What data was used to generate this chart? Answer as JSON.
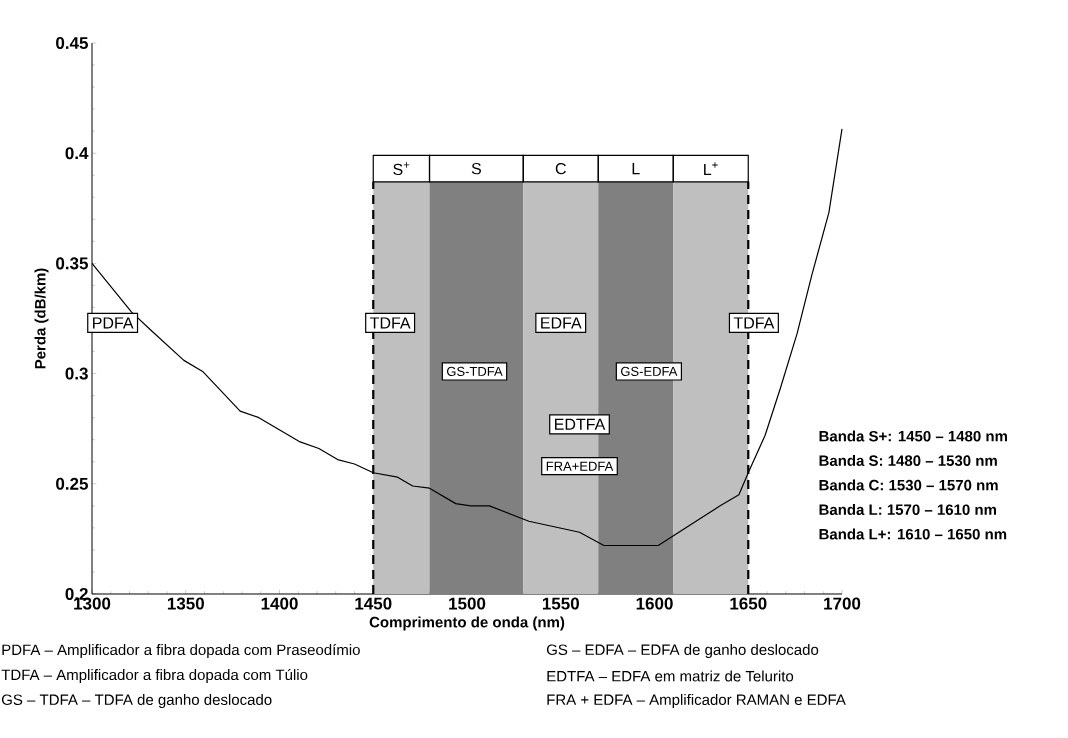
{
  "chart_data": {
    "type": "line",
    "xlabel": "Comprimento de onda (nm)",
    "ylabel": "Perda (dB/km)",
    "color": "#000000",
    "marker": "none",
    "line_style": "solid",
    "x": [
      1300,
      1321,
      1331,
      1349,
      1359,
      1379,
      1389,
      1411,
      1421,
      1431,
      1440,
      1450,
      1463,
      1471,
      1480,
      1494,
      1502,
      1512,
      1533,
      1560,
      1573,
      1581,
      1602,
      1613,
      1624,
      1635,
      1645,
      1650,
      1659,
      1667,
      1676,
      1684,
      1693,
      1700
    ],
    "values": [
      0.35,
      0.328,
      0.32,
      0.306,
      0.301,
      0.283,
      0.28,
      0.269,
      0.266,
      0.261,
      0.259,
      0.255,
      0.253,
      0.249,
      0.248,
      0.241,
      0.24,
      0.24,
      0.233,
      0.228,
      0.222,
      0.222,
      0.222,
      0.228,
      0.234,
      0.24,
      0.245,
      0.255,
      0.272,
      0.293,
      0.318,
      0.345,
      0.373,
      0.411
    ],
    "xlim": [
      1300,
      1700
    ],
    "ylim": [
      0.2,
      0.45
    ],
    "xticks": [
      1300,
      1350,
      1400,
      1450,
      1500,
      1550,
      1600,
      1650,
      1700
    ],
    "yticks": [
      0.2,
      0.25,
      0.3,
      0.35,
      0.4,
      0.45
    ],
    "bands": [
      {
        "axis": "x",
        "from": 1450,
        "to": 1480,
        "label": "S$^{+}$",
        "color": "#bfbfbf"
      },
      {
        "axis": "x",
        "from": 1480,
        "to": 1530,
        "label": "S",
        "color": "#808080"
      },
      {
        "axis": "x",
        "from": 1530,
        "to": 1570,
        "label": "C",
        "color": "#bfbfbf"
      },
      {
        "axis": "x",
        "from": 1570,
        "to": 1610,
        "label": "L",
        "color": "#808080"
      },
      {
        "axis": "x",
        "from": 1610,
        "to": 1650,
        "label": "L$^{+}$",
        "color": "#bfbfbf"
      }
    ],
    "ref_lines": [
      {
        "axis": "x",
        "value": 1450,
        "line_style": "dashed",
        "color": "#000000"
      },
      {
        "axis": "x",
        "value": 1650,
        "line_style": "dashed",
        "color": "#000000"
      }
    ],
    "annotations": [
      "PDFA",
      "TDFA",
      "EDFA",
      "TDFA",
      "GS-TDFA",
      "GS-EDFA",
      "EDTFA",
      "FRA+EDFA",
      "Banda S+: 1450 – 1480 nm",
      "Banda S: 1480 – 1530 nm",
      "Banda C: 1530 – 1570 nm",
      "Banda L: 1570 – 1610 nm",
      "Banda L+: 1610 – 1650 nm",
      "PDFA – Amplificador a fibra dopada com Praseodímio",
      "GS – EDFA – EDFA de ganho deslocado",
      "TDFA – Amplificador a fibra dopada com Túlio",
      "EDTFA – EDFA em matriz de Telurito",
      "GS – TDFA – TDFA de ganho deslocado",
      "FRA + EDFA – Amplificador RAMAN e EDFA"
    ],
    "grid": false
  }
}
